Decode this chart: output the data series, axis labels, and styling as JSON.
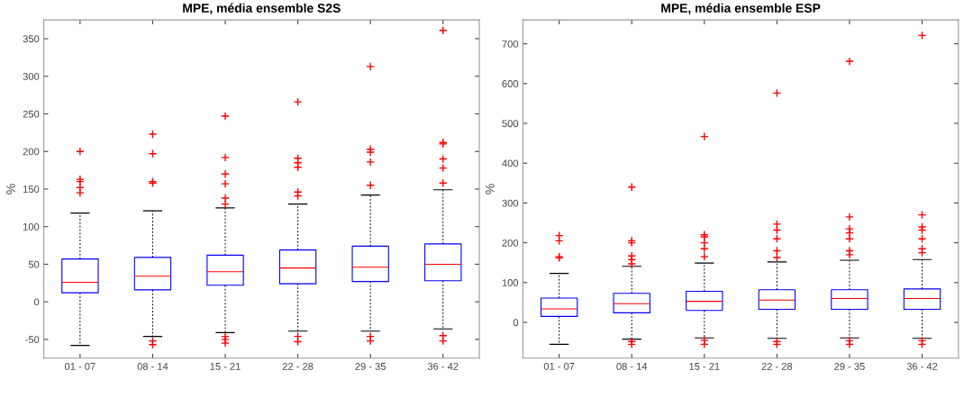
{
  "chart_data": [
    {
      "type": "box",
      "title": "MPE, média ensemble S2S",
      "ylabel": "%",
      "categories": [
        "01 - 07",
        "08 - 14",
        "15 - 21",
        "22 - 28",
        "29 - 35",
        "36 - 42"
      ],
      "ylim": [
        -75,
        375
      ],
      "yticks": [
        -50,
        0,
        50,
        100,
        150,
        200,
        250,
        300,
        350
      ],
      "grid": false,
      "series": [
        {
          "color": "#0000ff",
          "boxes": [
            {
              "low": -58,
              "q1": 12,
              "median": 26,
              "q3": 57,
              "high": 118,
              "outliers": [
                145,
                152,
                160,
                163,
                200
              ]
            },
            {
              "low": -46,
              "q1": 16,
              "median": 34,
              "q3": 59,
              "high": 121,
              "outliers": [
                158,
                160,
                197,
                223,
                -52,
                -57
              ]
            },
            {
              "low": -41,
              "q1": 22,
              "median": 40,
              "q3": 62,
              "high": 125,
              "outliers": [
                130,
                138,
                157,
                170,
                192,
                247,
                -46,
                -50,
                -55
              ]
            },
            {
              "low": -39,
              "q1": 24,
              "median": 45,
              "q3": 69,
              "high": 130,
              "outliers": [
                141,
                146,
                179,
                185,
                191,
                266,
                -46,
                -53
              ]
            },
            {
              "low": -39,
              "q1": 27,
              "median": 46,
              "q3": 74,
              "high": 142,
              "outliers": [
                155,
                186,
                199,
                203,
                313,
                -46,
                -52
              ]
            },
            {
              "low": -36,
              "q1": 28,
              "median": 50,
              "q3": 77,
              "high": 149,
              "outliers": [
                158,
                178,
                190,
                210,
                212,
                361,
                -45,
                -52
              ]
            }
          ]
        }
      ]
    },
    {
      "type": "box",
      "title": "MPE, média ensemble ESP",
      "ylabel": "%",
      "categories": [
        "01 - 07",
        "08 - 14",
        "15 - 21",
        "22 - 28",
        "29 - 35",
        "36 - 42"
      ],
      "ylim": [
        -90,
        760
      ],
      "yticks": [
        0,
        100,
        200,
        300,
        400,
        500,
        600,
        700
      ],
      "grid": false,
      "series": [
        {
          "color": "#0000ff",
          "boxes": [
            {
              "low": -55,
              "q1": 15,
              "median": 34,
              "q3": 61,
              "high": 123,
              "outliers": [
                162,
                165,
                205,
                218
              ]
            },
            {
              "low": -42,
              "q1": 24,
              "median": 47,
              "q3": 73,
              "high": 141,
              "outliers": [
                147,
                158,
                167,
                200,
                205,
                340,
                -48,
                -55
              ]
            },
            {
              "low": -39,
              "q1": 30,
              "median": 53,
              "q3": 78,
              "high": 149,
              "outliers": [
                165,
                185,
                200,
                215,
                220,
                467,
                -45,
                -55
              ]
            },
            {
              "low": -40,
              "q1": 33,
              "median": 56,
              "q3": 82,
              "high": 152,
              "outliers": [
                163,
                180,
                210,
                232,
                247,
                576,
                -48,
                -55
              ]
            },
            {
              "low": -39,
              "q1": 33,
              "median": 60,
              "q3": 82,
              "high": 156,
              "outliers": [
                170,
                180,
                210,
                225,
                235,
                265,
                656,
                -46,
                -55
              ]
            },
            {
              "low": -40,
              "q1": 33,
              "median": 60,
              "q3": 84,
              "high": 158,
              "outliers": [
                175,
                185,
                210,
                232,
                240,
                270,
                721,
                -46,
                -55
              ]
            }
          ]
        }
      ]
    }
  ]
}
